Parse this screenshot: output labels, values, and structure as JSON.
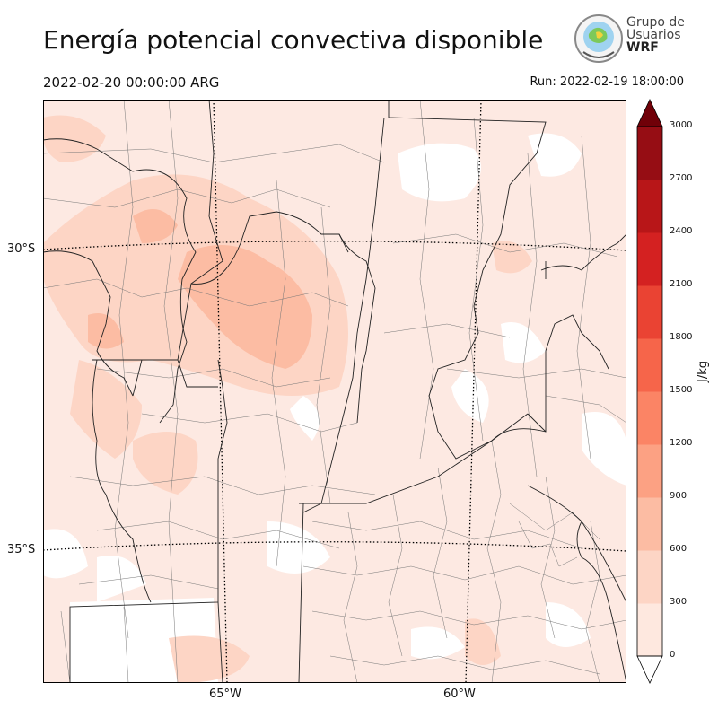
{
  "title": "Energía potencial convectiva disponible",
  "valid_time": "2022-02-20 00:00:00 ARG",
  "run_time": "Run: 2022-02-19 18:00:00",
  "logo": {
    "line1": "Grupo de",
    "line2": "Usuarios",
    "line3": "WRF"
  },
  "map": {
    "lat_labels": [
      "30°S",
      "35°S"
    ],
    "lon_labels": [
      "65°W",
      "60°W"
    ]
  },
  "colorbar": {
    "label": "J/kg",
    "ticks": [
      "0",
      "300",
      "600",
      "900",
      "1200",
      "1500",
      "1800",
      "2100",
      "2400",
      "2700",
      "3000"
    ],
    "colors": [
      "#fee8df",
      "#fdd5c5",
      "#fcbca3",
      "#fca183",
      "#fb8465",
      "#f6654a",
      "#ea4333",
      "#d42121",
      "#b81618",
      "#960d14",
      "#700008"
    ]
  }
}
